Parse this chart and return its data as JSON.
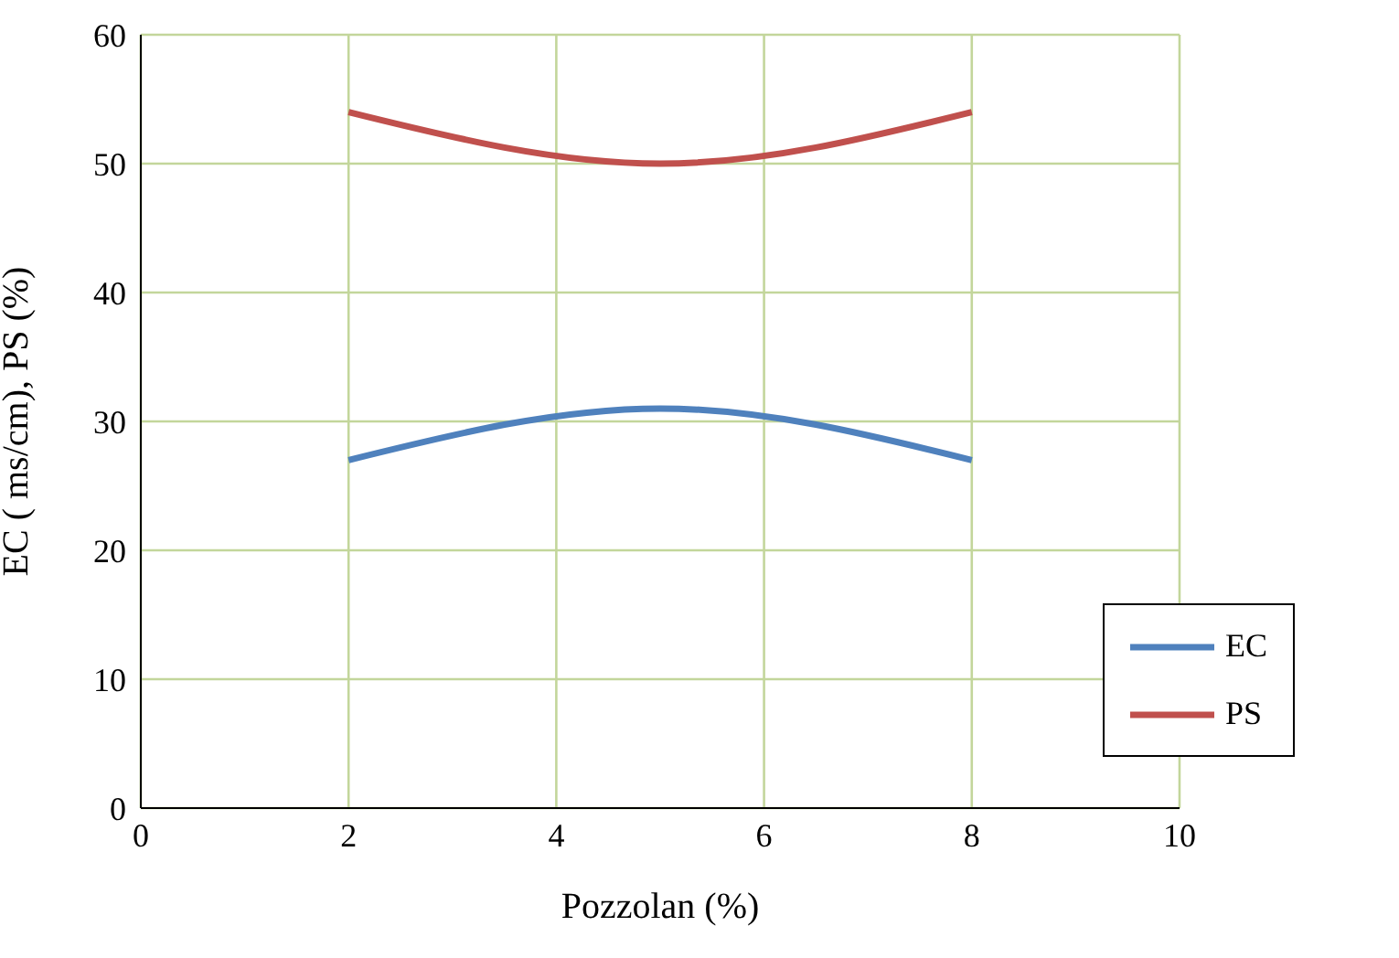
{
  "chart_data": {
    "type": "line",
    "xlabel": "Pozzolan (%)",
    "ylabel": "EC ( ms/cm), PS (%)",
    "x": [
      2,
      5,
      8
    ],
    "series": [
      {
        "name": "EC",
        "color": "#4f81bd",
        "values": [
          27,
          31,
          27
        ]
      },
      {
        "name": "PS",
        "color": "#c0504d",
        "values": [
          54,
          50,
          54
        ]
      }
    ],
    "xlim": [
      0,
      10
    ],
    "xticks": [
      0,
      2,
      4,
      6,
      8,
      10
    ],
    "ylim": [
      0,
      60
    ],
    "yticks": [
      0,
      10,
      20,
      30,
      40,
      50,
      60
    ],
    "grid": true,
    "legend": "bottom right",
    "marker": "none",
    "line_style": "solid"
  }
}
